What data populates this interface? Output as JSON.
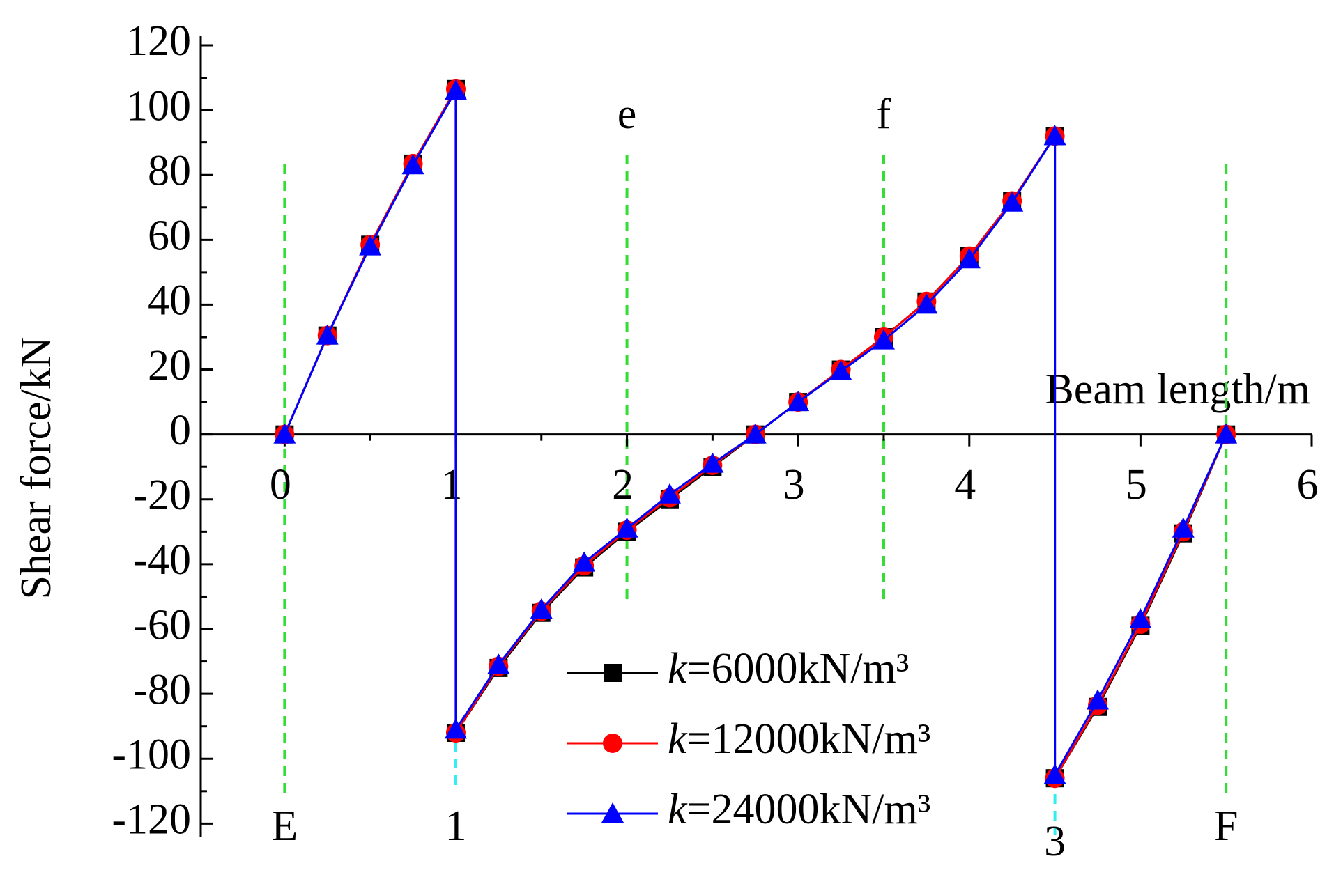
{
  "chart_data": {
    "type": "line",
    "x_label": "Beam length/m",
    "y_label": "Shear force/kN",
    "x": [
      0,
      0.25,
      0.5,
      0.75,
      1,
      1,
      1.25,
      1.5,
      1.75,
      2,
      2.25,
      2.5,
      2.75,
      3,
      3.25,
      3.5,
      3.75,
      4,
      4.25,
      4.5,
      4.5,
      4.75,
      5,
      5.25,
      5.5
    ],
    "series": [
      {
        "name": "k=6000kN/m³",
        "color": "#000000",
        "marker": "square",
        "values": [
          0,
          30.5,
          58.5,
          83.5,
          106.5,
          -92,
          -72,
          -55,
          -41,
          -30,
          -20,
          -10,
          0,
          10,
          20,
          30,
          41,
          55,
          72,
          92,
          -106,
          -84,
          -59,
          -30.5,
          0
        ]
      },
      {
        "name": "k=12000kN/m³",
        "color": "#ff0000",
        "marker": "circle",
        "values": [
          0,
          30.5,
          58.5,
          83.5,
          106.5,
          -92,
          -71.5,
          -54.5,
          -40.5,
          -29.5,
          -19.5,
          -9.5,
          0,
          10,
          20,
          30,
          41,
          55,
          72,
          92,
          -106,
          -83.5,
          -58.5,
          -30,
          0
        ]
      },
      {
        "name": "k=24000kN/m³",
        "color": "#0000ff",
        "marker": "triangle",
        "values": [
          0,
          30.5,
          58,
          83,
          106,
          -91,
          -71,
          -54,
          -39.5,
          -29,
          -18.5,
          -9,
          0,
          10,
          19.5,
          29,
          40,
          54,
          71.5,
          92,
          -105,
          -82,
          -57,
          -29,
          0
        ]
      }
    ],
    "xlim": [
      -0.49,
      6
    ],
    "ylim": [
      -124,
      123
    ],
    "xticks": [
      0,
      1,
      2,
      3,
      4,
      5,
      6
    ],
    "yticks": [
      -120,
      -100,
      -80,
      -60,
      -40,
      -20,
      0,
      20,
      40,
      60,
      80,
      100,
      120
    ],
    "annotations": [
      {
        "label": "E",
        "x": 0,
        "position": "bottom",
        "color": "#33dd33"
      },
      {
        "label": "1",
        "x": 1,
        "position": "bottom",
        "color": "#33eeee"
      },
      {
        "label": "e",
        "x": 2,
        "position": "top",
        "color": "#33dd33"
      },
      {
        "label": "f",
        "x": 3.5,
        "position": "top",
        "color": "#33dd33"
      },
      {
        "label": "3",
        "x": 4.5,
        "position": "bottom",
        "color": "#33eeee"
      },
      {
        "label": "F",
        "x": 5.5,
        "position": "bottom",
        "color": "#33dd33"
      }
    ],
    "legend": "bottom-center"
  }
}
